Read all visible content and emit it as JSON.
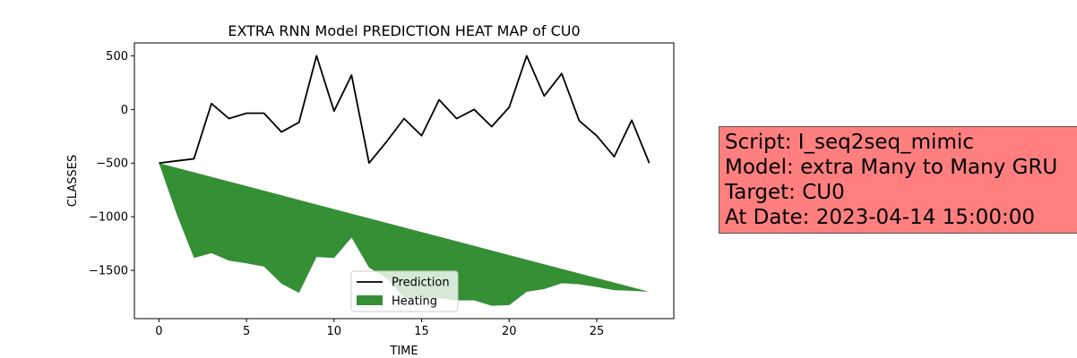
{
  "chart_data": {
    "type": "line",
    "title": "EXTRA RNN Model PREDICTION HEAT MAP of CU0",
    "xlabel": "TIME",
    "ylabel": "CLASSES",
    "xlim": [
      -1.4,
      29.4
    ],
    "ylim": [
      -1950,
      620
    ],
    "x_ticks": [
      0,
      5,
      10,
      15,
      20,
      25
    ],
    "y_ticks": [
      500,
      0,
      -500,
      -1000,
      -1500
    ],
    "y_tick_labels": [
      "500",
      "0",
      "−500",
      "−1000",
      "−1500"
    ],
    "x": [
      0,
      1,
      2,
      3,
      4,
      5,
      6,
      7,
      8,
      9,
      10,
      11,
      12,
      13,
      14,
      15,
      16,
      17,
      18,
      19,
      20,
      21,
      22,
      23,
      24,
      25,
      26,
      27,
      28
    ],
    "series": [
      {
        "name": "Prediction",
        "color": "#000000",
        "values": [
          -500,
          -480,
          -460,
          55,
          -85,
          -35,
          -35,
          -210,
          -120,
          500,
          -15,
          320,
          -500,
          -300,
          -85,
          -245,
          90,
          -85,
          0,
          -160,
          20,
          500,
          125,
          335,
          -105,
          -245,
          -440,
          -100,
          -500
        ]
      },
      {
        "name": "Heating",
        "type": "area",
        "color": "#2e8b2e",
        "upper": [
          -500,
          -542.9,
          -585.7,
          -628.6,
          -671.4,
          -714.3,
          -757.1,
          -800,
          -842.9,
          -885.7,
          -928.6,
          -971.4,
          -1014.3,
          -1057.1,
          -1100,
          -1142.9,
          -1185.7,
          -1228.6,
          -1271.4,
          -1314.3,
          -1357.1,
          -1400,
          -1442.9,
          -1485.7,
          -1528.6,
          -1571.4,
          -1614.3,
          -1657.1,
          -1700
        ],
        "lower": [
          -500,
          -970,
          -1385,
          -1340,
          -1410,
          -1435,
          -1465,
          -1625,
          -1710,
          -1375,
          -1385,
          -1195,
          -1475,
          -1570,
          -1760,
          -1760,
          -1760,
          -1780,
          -1780,
          -1830,
          -1825,
          -1700,
          -1675,
          -1620,
          -1630,
          -1655,
          -1685,
          -1690,
          -1700
        ]
      }
    ],
    "legend": {
      "placement": "lower center",
      "entries": [
        "Prediction",
        "Heating"
      ]
    },
    "grid": false
  },
  "info_box": {
    "background": "#ff7f7f",
    "lines": [
      "Script: I_seq2seq_mimic",
      "Model: extra Many to Many GRU",
      "Target: CU0",
      "At Date: 2023-04-14 15:00:00"
    ]
  }
}
